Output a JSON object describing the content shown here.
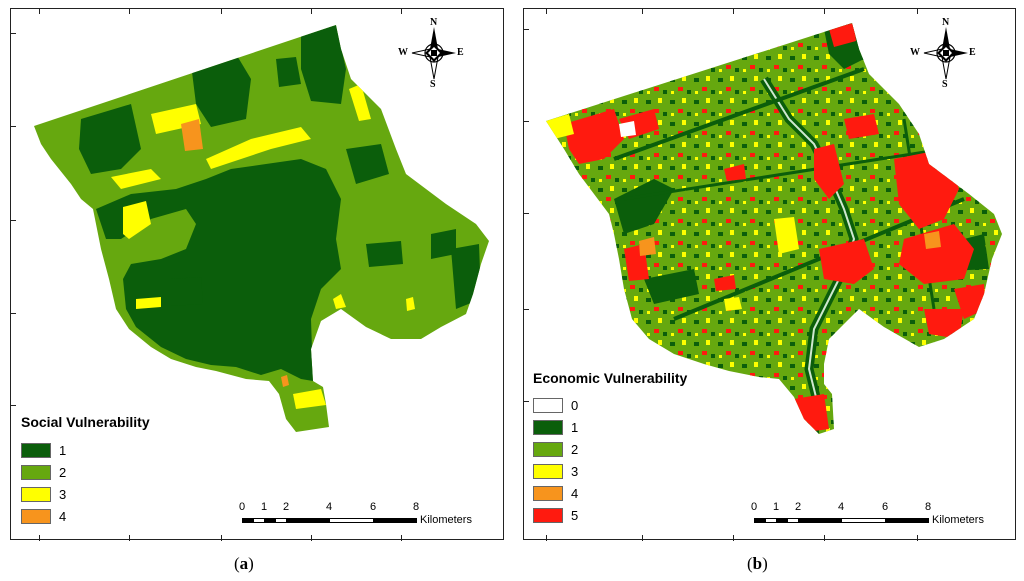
{
  "panels": [
    {
      "caption_letter": "a",
      "legend": {
        "title": "Social Vulnerability",
        "items": [
          {
            "label": "1",
            "color": "#0b5e0b"
          },
          {
            "label": "2",
            "color": "#66a80f"
          },
          {
            "label": "3",
            "color": "#ffff00"
          },
          {
            "label": "4",
            "color": "#f7941d"
          }
        ]
      },
      "scale": {
        "labels": [
          "0",
          "1",
          "2",
          "4",
          "6",
          "8"
        ],
        "units": "Kilometers"
      },
      "compass": {
        "n": "N",
        "s": "S",
        "e": "E",
        "w": "W"
      }
    },
    {
      "caption_letter": "b",
      "legend": {
        "title": "Economic Vulnerability",
        "items": [
          {
            "label": "0",
            "color": "#ffffff"
          },
          {
            "label": "1",
            "color": "#0b5e0b"
          },
          {
            "label": "2",
            "color": "#66a80f"
          },
          {
            "label": "3",
            "color": "#ffff00"
          },
          {
            "label": "4",
            "color": "#f7941d"
          },
          {
            "label": "5",
            "color": "#ff1a0f"
          }
        ]
      },
      "scale": {
        "labels": [
          "0",
          "1",
          "2",
          "4",
          "6",
          "8"
        ],
        "units": "Kilometers"
      },
      "compass": {
        "n": "N",
        "s": "S",
        "e": "E",
        "w": "W"
      }
    }
  ]
}
